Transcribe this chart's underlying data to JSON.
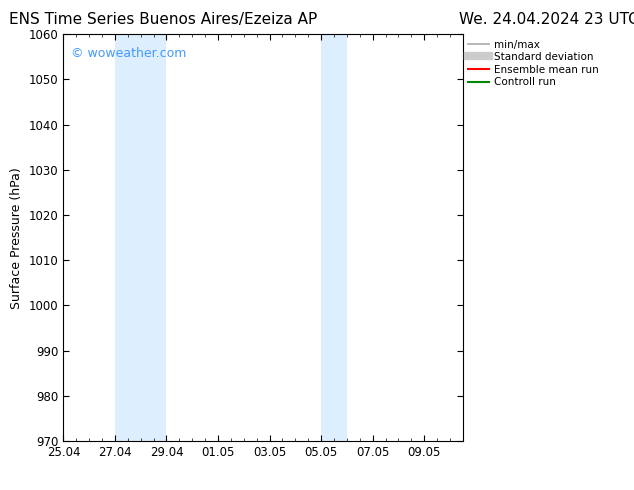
{
  "title_left": "ENS Time Series Buenos Aires/Ezeiza AP",
  "title_right": "We. 24.04.2024 23 UTC",
  "ylabel": "Surface Pressure (hPa)",
  "ylim": [
    970,
    1060
  ],
  "yticks": [
    970,
    980,
    990,
    1000,
    1010,
    1020,
    1030,
    1040,
    1050,
    1060
  ],
  "xtick_labels": [
    "25.04",
    "27.04",
    "29.04",
    "01.05",
    "03.05",
    "05.05",
    "07.05",
    "09.05"
  ],
  "xtick_positions_days": [
    0,
    2,
    4,
    6,
    8,
    10,
    12,
    14
  ],
  "xlim": [
    0,
    15.5
  ],
  "shade_bands": [
    {
      "start_day": 2,
      "end_day": 4
    },
    {
      "start_day": 10,
      "end_day": 11
    }
  ],
  "shade_color": "#ddeeff",
  "watermark": "© woweather.com",
  "watermark_color": "#4499ff",
  "legend_items": [
    {
      "label": "min/max",
      "color": "#aaaaaa",
      "lw": 1.2,
      "style": "solid"
    },
    {
      "label": "Standard deviation",
      "color": "#cccccc",
      "lw": 6,
      "style": "solid"
    },
    {
      "label": "Ensemble mean run",
      "color": "#ff0000",
      "lw": 1.5,
      "style": "solid"
    },
    {
      "label": "Controll run",
      "color": "#008800",
      "lw": 1.5,
      "style": "solid"
    }
  ],
  "bg_color": "#ffffff",
  "plot_bg_color": "#ffffff",
  "title_fontsize": 11,
  "axis_fontsize": 9,
  "tick_fontsize": 8.5
}
